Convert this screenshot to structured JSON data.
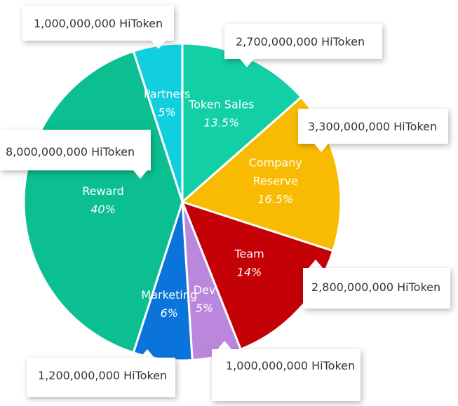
{
  "chart_data": {
    "type": "pie",
    "slices": [
      {
        "name": "Partners",
        "pct_label": "5%",
        "value": 5,
        "amount": "1,000,000,000 HiToken",
        "color": "#12cfe0"
      },
      {
        "name": "Token Sales",
        "pct_label": "13.5%",
        "value": 13.5,
        "amount": "2,700,000,000 HiToken",
        "color": "#12cfa5"
      },
      {
        "name": "Company Reserve",
        "name_lines": [
          "Company",
          "Reserve"
        ],
        "pct_label": "16.5%",
        "value": 16.5,
        "amount": "3,300,000,000 HiToken",
        "color": "#f9bb02"
      },
      {
        "name": "Team",
        "pct_label": "14%",
        "value": 14,
        "amount": "2,800,000,000 HiToken",
        "color": "#c40107"
      },
      {
        "name": "Dev",
        "pct_label": "5%",
        "value": 5,
        "amount": "1,000,000,000 HiToken",
        "color": "#bb87dd"
      },
      {
        "name": "Marketing",
        "pct_label": "6%",
        "value": 6,
        "amount": "1,200,000,000 HiToken",
        "color": "#0a74da"
      },
      {
        "name": "Reward",
        "pct_label": "40%",
        "value": 40,
        "amount": "8,000,000,000 HiToken",
        "color": "#0cbf90"
      }
    ]
  }
}
